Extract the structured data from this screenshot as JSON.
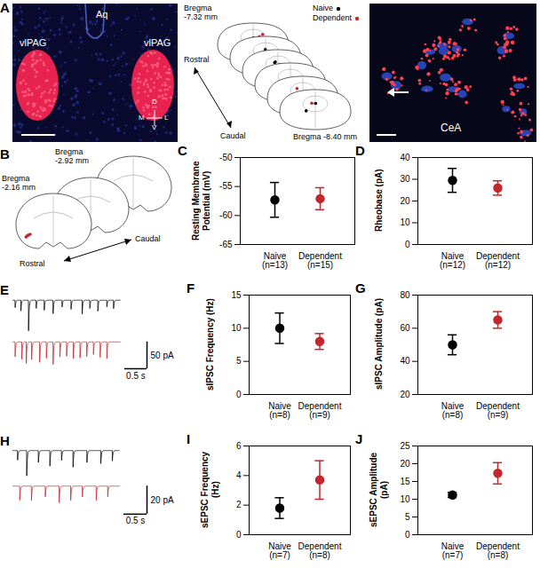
{
  "chart_data": [
    {
      "type": "scatter",
      "annotations": [
        "C"
      ],
      "categories": [
        "Naive (n=13)",
        "Dependent (n=15)"
      ],
      "values": [
        -57.3,
        -57.1
      ],
      "errors": [
        3.0,
        1.9
      ],
      "colors": [
        "#000000",
        "#c1272d"
      ],
      "marker": "circle",
      "ylabel": "Resting Membrane Potential (mV)",
      "ylim": [
        -65,
        -50
      ],
      "yticks": [
        -65,
        -60,
        -55,
        -50
      ]
    },
    {
      "type": "scatter",
      "annotations": [
        "D"
      ],
      "categories": [
        "Naive (n=12)",
        "Dependent (n=12)"
      ],
      "values": [
        29.5,
        26.0
      ],
      "errors": [
        5.5,
        3.3
      ],
      "colors": [
        "#000000",
        "#c1272d"
      ],
      "marker": "circle",
      "ylabel": "Rheobase (pA)",
      "ylim": [
        0,
        40
      ],
      "yticks": [
        0,
        10,
        20,
        30,
        40
      ]
    },
    {
      "type": "scatter",
      "annotations": [
        "F"
      ],
      "categories": [
        "Naive (n=8)",
        "Dependent (n=9)"
      ],
      "values": [
        10.0,
        8.0
      ],
      "errors": [
        2.3,
        1.2
      ],
      "colors": [
        "#000000",
        "#c1272d"
      ],
      "marker": "circle",
      "ylabel": "sIPSC Frequency (Hz)",
      "ylim": [
        0,
        15
      ],
      "yticks": [
        0,
        5,
        10,
        15
      ]
    },
    {
      "type": "scatter",
      "annotations": [
        "G"
      ],
      "categories": [
        "Naive (n=8)",
        "Dependent (n=9)"
      ],
      "values": [
        50,
        65
      ],
      "errors": [
        6,
        5
      ],
      "colors": [
        "#000000",
        "#c1272d"
      ],
      "marker": "circle",
      "ylabel": "sIPSC Amplitude (pA)",
      "ylim": [
        20,
        80
      ],
      "yticks": [
        20,
        40,
        60,
        80
      ]
    },
    {
      "type": "scatter",
      "annotations": [
        "I"
      ],
      "categories": [
        "Naive (n=7)",
        "Dependent (n=8)"
      ],
      "values": [
        1.8,
        3.7
      ],
      "errors": [
        0.7,
        1.3
      ],
      "colors": [
        "#000000",
        "#c1272d"
      ],
      "marker": "circle",
      "ylabel": "sEPSC Frequency (Hz)",
      "ylim": [
        0,
        6
      ],
      "yticks": [
        0,
        2,
        4,
        6
      ]
    },
    {
      "type": "scatter",
      "annotations": [
        "J"
      ],
      "categories": [
        "Naive (n=7)",
        "Dependent (n=8)"
      ],
      "values": [
        11.2,
        17.3
      ],
      "errors": [
        0.7,
        3.0
      ],
      "colors": [
        "#000000",
        "#c1272d"
      ],
      "marker": "circle",
      "ylabel": "sEPSC Amplitude (pA)",
      "ylim": [
        0,
        25
      ],
      "yticks": [
        0,
        5,
        10,
        15,
        20,
        25
      ]
    }
  ],
  "figure": {
    "A": {
      "letter": "A",
      "left_image": {
        "aqueduct": "Aq",
        "regions": [
          "vlPAG",
          "vlPAG"
        ],
        "compass": {
          "up": "D",
          "down": "V",
          "left": "M",
          "right": "L"
        }
      },
      "atlas": {
        "top": "Bregma -7.32 mm",
        "bottom": "Bregma -8.40 mm",
        "rostral": "Rostral",
        "caudal": "Caudal",
        "legend": [
          {
            "name": "Naive",
            "color": "#000000"
          },
          {
            "name": "Dependent",
            "color": "#c1272d"
          }
        ]
      },
      "right_image": {
        "region": "CeA"
      }
    },
    "B": {
      "letter": "B",
      "sections": [
        "Bregma -2.16 mm",
        "Bregma -2.92 mm"
      ],
      "rostral": "Rostral",
      "caudal": "Caudal",
      "color": "#c1272d"
    },
    "E": {
      "letter": "E",
      "traces": [
        {
          "color": "#000000",
          "events": [
            [
              0.05,
              15
            ],
            [
              0.18,
              20
            ],
            [
              0.35,
              62
            ],
            [
              0.52,
              18
            ],
            [
              0.7,
              22
            ],
            [
              0.9,
              25
            ],
            [
              1.1,
              14
            ],
            [
              1.3,
              20
            ],
            [
              1.55,
              28
            ],
            [
              1.72,
              18
            ],
            [
              1.9,
              24
            ],
            [
              2.1,
              16
            ],
            [
              2.25,
              20
            ]
          ]
        },
        {
          "color": "#c1272d",
          "events": [
            [
              0.05,
              30
            ],
            [
              0.2,
              35
            ],
            [
              0.3,
              40
            ],
            [
              0.42,
              33
            ],
            [
              0.6,
              38
            ],
            [
              0.75,
              30
            ],
            [
              0.9,
              42
            ],
            [
              1.05,
              36
            ],
            [
              1.2,
              34
            ],
            [
              1.35,
              40
            ],
            [
              1.5,
              38
            ],
            [
              1.65,
              35
            ],
            [
              1.8,
              30
            ],
            [
              1.95,
              37
            ],
            [
              2.1,
              40
            ]
          ]
        }
      ],
      "scale_bar": {
        "y_value": 50,
        "y_label": "50 pA",
        "x_value": 0.5,
        "x_label": "0.5 s"
      }
    },
    "H": {
      "letter": "H",
      "traces": [
        {
          "color": "#000000",
          "events": [
            [
              0.1,
              8
            ],
            [
              0.3,
              18
            ],
            [
              0.55,
              10
            ],
            [
              0.8,
              12
            ],
            [
              1.05,
              9
            ],
            [
              1.3,
              14
            ],
            [
              1.6,
              10
            ],
            [
              1.9,
              11
            ],
            [
              2.15,
              8
            ]
          ]
        },
        {
          "color": "#c1272d",
          "events": [
            [
              0.15,
              10
            ],
            [
              0.4,
              12
            ],
            [
              0.7,
              9
            ],
            [
              1.0,
              14
            ],
            [
              1.25,
              11
            ],
            [
              1.5,
              10
            ],
            [
              1.8,
              13
            ],
            [
              2.05,
              9
            ]
          ]
        }
      ],
      "scale_bar": {
        "y_value": 20,
        "y_label": "20 pA",
        "x_value": 0.5,
        "x_label": "0.5 s"
      }
    }
  }
}
